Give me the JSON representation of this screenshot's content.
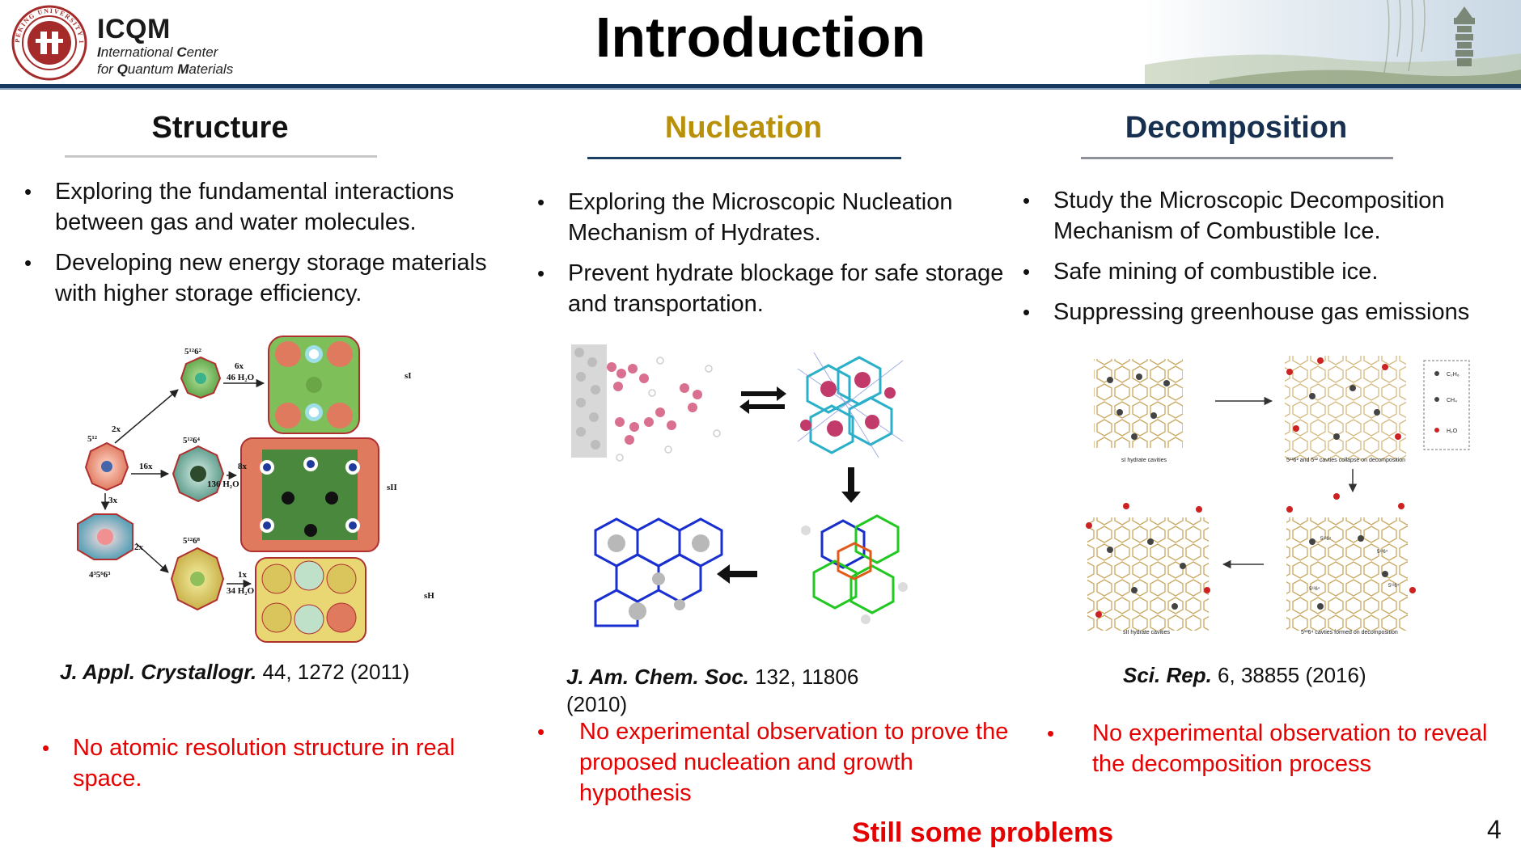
{
  "header": {
    "title": "Introduction",
    "brand_name": "ICQM",
    "brand_line1_a": "I",
    "brand_line1_b": "nternational ",
    "brand_line1_c": "C",
    "brand_line1_d": "enter",
    "brand_line2_a": "for ",
    "brand_line2_b": "Q",
    "brand_line2_c": "uantum ",
    "brand_line2_d": "M",
    "brand_line2_e": "aterials",
    "seal_text": "PEKING UNIVERSITY 1898"
  },
  "columns": [
    {
      "heading": "Structure",
      "heading_color": "#000000",
      "underline_color": "#c8c8c8",
      "bullets": [
        "Exploring the fundamental interactions between gas and water molecules.",
        "Developing new energy storage materials with higher storage efficiency."
      ],
      "citation_journal": "J. Appl. Crystallogr.",
      "citation_rest": " 44, 1272 (2011)",
      "problem": "No atomic resolution structure in real space."
    },
    {
      "heading": "Nucleation",
      "heading_color": "#b8900a",
      "underline_color": "#1d3f66",
      "bullets": [
        "Exploring the Microscopic Nucleation Mechanism of Hydrates.",
        "Prevent hydrate blockage for safe storage and transportation."
      ],
      "citation_journal": "J. Am. Chem. Soc.",
      "citation_rest": " 132, 11806 (2010)",
      "problem": "No experimental observation to prove the proposed nucleation and growth hypothesis"
    },
    {
      "heading": "Decomposition",
      "heading_color": "#17304f",
      "underline_color": "#8f9299",
      "bullets": [
        "Study the Microscopic Decomposition Mechanism of Combustible Ice.",
        "Safe mining of combustible ice.",
        "Suppressing greenhouse gas emissions"
      ],
      "citation_journal": "Sci. Rep.",
      "citation_rest": " 6, 38855 (2016)",
      "problem": "No experimental observation to reveal the decomposition process"
    }
  ],
  "structure_figure": {
    "labels": [
      "5¹²6²",
      "6x",
      "46 H₂O",
      "sI",
      "5¹²",
      "2x",
      "16x",
      "5¹²6⁴",
      "8x",
      "136 H₂O",
      "sII",
      "3x",
      "2x",
      "5¹²6⁸",
      "1x",
      "34 H₂O",
      "sH",
      "4³5⁶6³"
    ]
  },
  "decomposition_figure": {
    "legend": [
      "C₂H₆",
      "CH₄",
      "H₂O"
    ],
    "captions": [
      "sI hydrate cavities",
      "5¹²6² and 5¹² cavties collapse on decomposition",
      "sII hydrate cavities",
      "5¹²6⁴ cavties formed on decomposition"
    ],
    "cage_labels": [
      "5¹²6⁴",
      "5¹²6⁴",
      "5¹²6⁴",
      "5¹²6⁴"
    ]
  },
  "footer": {
    "still_problems": "Still some problems",
    "page_number": "4"
  },
  "colors": {
    "accent_navy": "#17385f",
    "problem_red": "#e60000",
    "nucleation_gold": "#b8900a"
  }
}
